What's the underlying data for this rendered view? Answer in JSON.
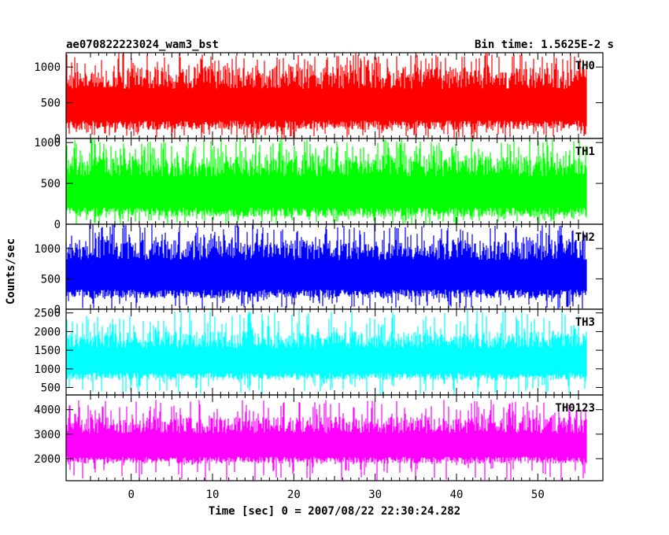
{
  "header": {
    "title": "ae070822223024_wam3_bst",
    "bin_time": "Bin time: 1.5625E-2 s"
  },
  "chart_data": {
    "type": "line",
    "xlabel": "Time [sec] 0 = 2007/08/22 22:30:24.282",
    "ylabel": "Counts/sec",
    "xlim": [
      -8,
      58
    ],
    "x_ticks": [
      "0",
      "10",
      "20",
      "30",
      "40",
      "50"
    ],
    "x_tick_values": [
      0,
      10,
      20,
      30,
      40,
      50
    ],
    "x_data_range": [
      -8,
      56
    ],
    "panels": [
      {
        "name": "TH0",
        "color": "#ff0000",
        "ylim": [
          0,
          1200
        ],
        "y_ticks": [
          "0",
          "500",
          "1000"
        ],
        "y_tick_values": [
          0,
          500,
          1000
        ],
        "band": {
          "low": 120,
          "high": 1000,
          "peak": 1200
        }
      },
      {
        "name": "TH1",
        "color": "#00ff00",
        "ylim": [
          0,
          1050
        ],
        "y_ticks": [
          "0",
          "500",
          "1000"
        ],
        "y_tick_values": [
          0,
          500,
          1000
        ],
        "band": {
          "low": 90,
          "high": 850,
          "peak": 1050
        }
      },
      {
        "name": "TH2",
        "color": "#0000ff",
        "ylim": [
          0,
          1400
        ],
        "y_ticks": [
          "0",
          "500",
          "1000"
        ],
        "y_tick_values": [
          0,
          500,
          1000
        ],
        "band": {
          "low": 180,
          "high": 1150,
          "peak": 1400
        }
      },
      {
        "name": "TH3",
        "color": "#00ffff",
        "ylim": [
          300,
          2600
        ],
        "y_ticks": [
          "500",
          "1000",
          "1500",
          "2000",
          "2500"
        ],
        "y_tick_values": [
          500,
          1000,
          1500,
          2000,
          2500
        ],
        "band": {
          "low": 700,
          "high": 2000,
          "peak": 2600
        }
      },
      {
        "name": "TH0123",
        "color": "#ff00ff",
        "ylim": [
          1100,
          4600
        ],
        "y_ticks": [
          "2000",
          "3000",
          "4000"
        ],
        "y_tick_values": [
          2000,
          3000,
          4000
        ],
        "band": {
          "low": 1800,
          "high": 3700,
          "peak": 4400
        }
      }
    ]
  }
}
